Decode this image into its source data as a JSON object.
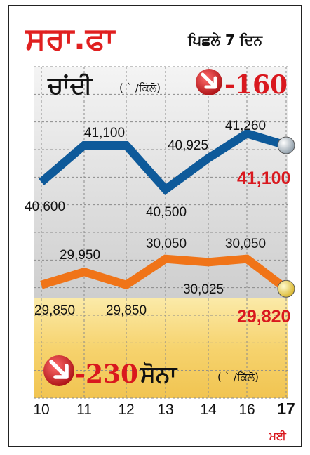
{
  "header": {
    "title": "ਸਰਾ.ਫਾ",
    "subtitle": "ਪਿਛਲੇ 7 ਦਿਨ"
  },
  "silver": {
    "label": "ਚਾਂਦੀ",
    "unit": "( ` /ਕਿੱਲੋ)",
    "change": "-160",
    "latest": "41,100"
  },
  "gold": {
    "label": "ਸੋਨਾ",
    "unit": "( ` /ਕਿੱਲੋ)",
    "change": "-230",
    "latest": "29,820"
  },
  "month_label": "ਮਈ",
  "colors": {
    "title": "#e02020",
    "silver_line": "#0e5a9a",
    "gold_line": "#f07418",
    "accent_red": "#d9181e",
    "grid": "#8a8a8a"
  },
  "chart_data": {
    "type": "line",
    "x": [
      "10",
      "11",
      "12",
      "13",
      "14",
      "16",
      "17"
    ],
    "series": [
      {
        "name": "ਚਾਂਦੀ",
        "values": [
          40600,
          41100,
          41100,
          40500,
          40925,
          41260,
          41100
        ],
        "labels": [
          "40,600",
          "41,100",
          "",
          "40,500",
          "40,925",
          "41,260",
          "41,100"
        ]
      },
      {
        "name": "ਸੋਨਾ",
        "values": [
          29850,
          29950,
          29850,
          30050,
          30025,
          30050,
          29820
        ],
        "labels": [
          "29,850",
          "29,950",
          "29,850",
          "30,050",
          "30,025",
          "30,050",
          "29,820"
        ]
      }
    ],
    "grid": true
  }
}
